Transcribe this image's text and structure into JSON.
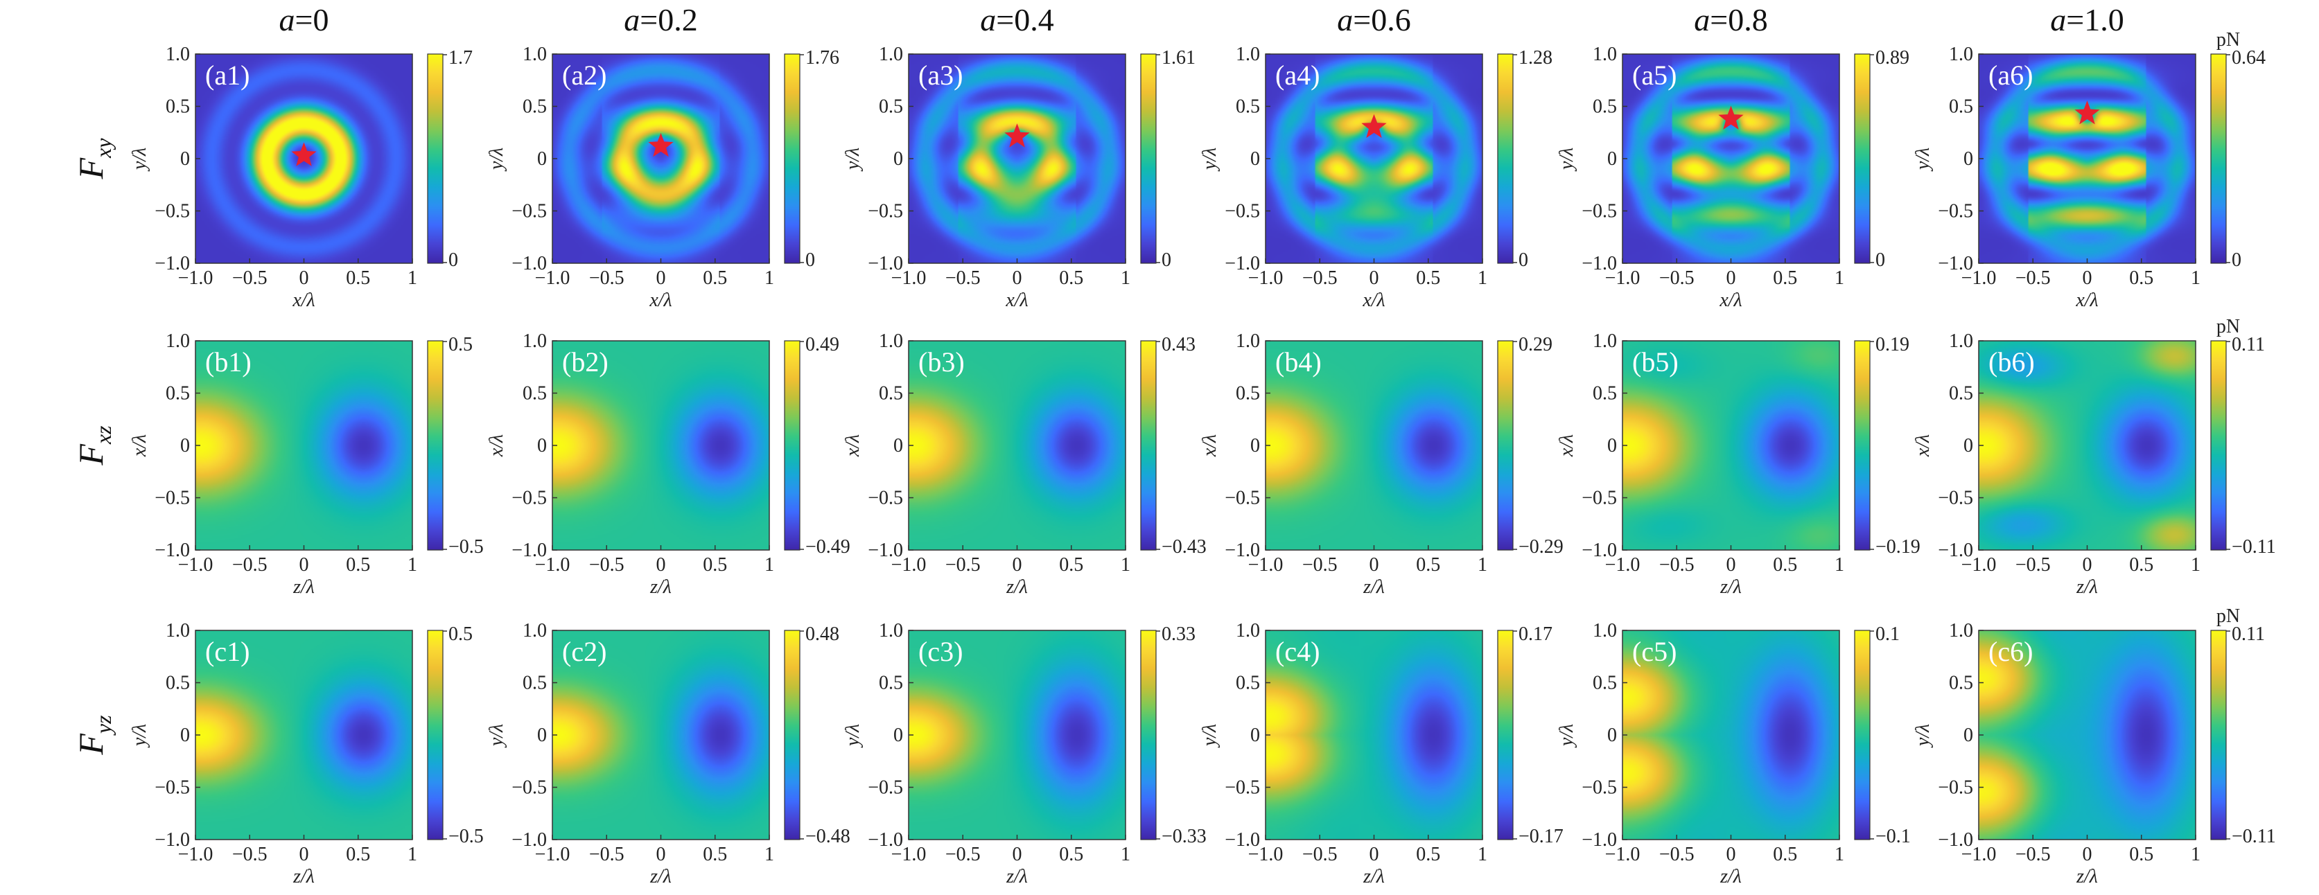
{
  "figure": {
    "colormap": [
      "#3e26a8",
      "#4743d4",
      "#3d6afd",
      "#2c8ff2",
      "#17a8d6",
      "#12bcac",
      "#38c882",
      "#7ec957",
      "#c1c039",
      "#f0c032",
      "#fad932",
      "#f9fb15"
    ],
    "star_color": "#e8202e",
    "unit_label": "pN",
    "column_headers": [
      {
        "a": "a",
        "eq": "=0"
      },
      {
        "a": "a",
        "eq": "=0.2"
      },
      {
        "a": "a",
        "eq": "=0.4"
      },
      {
        "a": "a",
        "eq": "=0.6"
      },
      {
        "a": "a",
        "eq": "=0.8"
      },
      {
        "a": "a",
        "eq": "=1.0"
      }
    ],
    "row_labels": [
      {
        "main": "F",
        "sub": "xy"
      },
      {
        "main": "F",
        "sub": "xz"
      },
      {
        "main": "F",
        "sub": "yz"
      }
    ]
  },
  "chart_data": [
    {
      "id": "a1",
      "type": "heatmap",
      "pattern": "xy",
      "a": 0,
      "panel_label": "(a1)",
      "title": "a=0",
      "xlabel": "x/λ",
      "ylabel": "y/λ",
      "xlim": [
        -1,
        1
      ],
      "ylim": [
        -1,
        1
      ],
      "xticks": [
        "−1.0",
        "−0.5",
        "0",
        "0.5",
        "1"
      ],
      "yticks": [
        "1.0",
        "0.5",
        "0",
        "−0.5",
        "−1.0"
      ],
      "colorbar_max": "1.7",
      "colorbar_min": "0",
      "star": [
        0,
        0.03
      ]
    },
    {
      "id": "a2",
      "type": "heatmap",
      "pattern": "xy",
      "a": 0.2,
      "panel_label": "(a2)",
      "title": "a=0.2",
      "xlabel": "x/λ",
      "ylabel": "y/λ",
      "xlim": [
        -1,
        1
      ],
      "ylim": [
        -1,
        1
      ],
      "xticks": [
        "−1.0",
        "−0.5",
        "0",
        "0.5",
        "1"
      ],
      "yticks": [
        "1.0",
        "0.5",
        "0",
        "−0.5",
        "−1.0"
      ],
      "colorbar_max": "1.76",
      "colorbar_min": "0",
      "star": [
        0,
        0.12
      ]
    },
    {
      "id": "a3",
      "type": "heatmap",
      "pattern": "xy",
      "a": 0.4,
      "panel_label": "(a3)",
      "title": "a=0.4",
      "xlabel": "x/λ",
      "ylabel": "y/λ",
      "xlim": [
        -1,
        1
      ],
      "ylim": [
        -1,
        1
      ],
      "xticks": [
        "−1.0",
        "−0.5",
        "0",
        "0.5",
        "1"
      ],
      "yticks": [
        "1.0",
        "0.5",
        "0",
        "−0.5",
        "−1.0"
      ],
      "colorbar_max": "1.61",
      "colorbar_min": "0",
      "star": [
        0,
        0.21
      ]
    },
    {
      "id": "a4",
      "type": "heatmap",
      "pattern": "xy",
      "a": 0.6,
      "panel_label": "(a4)",
      "title": "a=0.6",
      "xlabel": "x/λ",
      "ylabel": "y/λ",
      "xlim": [
        -1,
        1
      ],
      "ylim": [
        -1,
        1
      ],
      "xticks": [
        "−1.0",
        "−0.5",
        "0",
        "0.5",
        "1"
      ],
      "yticks": [
        "1.0",
        "0.5",
        "0",
        "−0.5",
        "−1.0"
      ],
      "colorbar_max": "1.28",
      "colorbar_min": "0",
      "star": [
        0,
        0.3
      ]
    },
    {
      "id": "a5",
      "type": "heatmap",
      "pattern": "xy",
      "a": 0.8,
      "panel_label": "(a5)",
      "title": "a=0.8",
      "xlabel": "x/λ",
      "ylabel": "y/λ",
      "xlim": [
        -1,
        1
      ],
      "ylim": [
        -1,
        1
      ],
      "xticks": [
        "−1.0",
        "−0.5",
        "0",
        "0.5",
        "1"
      ],
      "yticks": [
        "1.0",
        "0.5",
        "0",
        "−0.5",
        "−1.0"
      ],
      "colorbar_max": "0.89",
      "colorbar_min": "0",
      "star": [
        0,
        0.38
      ]
    },
    {
      "id": "a6",
      "type": "heatmap",
      "pattern": "xy",
      "a": 1.0,
      "panel_label": "(a6)",
      "title": "a=1.0",
      "xlabel": "x/λ",
      "ylabel": "y/λ",
      "xlim": [
        -1,
        1
      ],
      "ylim": [
        -1,
        1
      ],
      "xticks": [
        "−1.0",
        "−0.5",
        "0",
        "0.5",
        "1"
      ],
      "yticks": [
        "1.0",
        "0.5",
        "0",
        "−0.5",
        "−1.0"
      ],
      "colorbar_max": "0.64",
      "colorbar_min": "0",
      "star": [
        0,
        0.43
      ],
      "unit": "pN"
    },
    {
      "id": "b1",
      "type": "heatmap",
      "pattern": "xz",
      "a": 0,
      "panel_label": "(b1)",
      "xlabel": "z/λ",
      "ylabel": "x/λ",
      "xlim": [
        -1,
        1
      ],
      "ylim": [
        -1,
        1
      ],
      "xticks": [
        "−1.0",
        "−0.5",
        "0",
        "0.5",
        "1"
      ],
      "yticks": [
        "1.0",
        "0.5",
        "0",
        "−0.5",
        "−1.0"
      ],
      "colorbar_max": "0.5",
      "colorbar_min": "−0.5"
    },
    {
      "id": "b2",
      "type": "heatmap",
      "pattern": "xz",
      "a": 0.2,
      "panel_label": "(b2)",
      "xlabel": "z/λ",
      "ylabel": "x/λ",
      "xlim": [
        -1,
        1
      ],
      "ylim": [
        -1,
        1
      ],
      "xticks": [
        "−1.0",
        "−0.5",
        "0",
        "0.5",
        "1"
      ],
      "yticks": [
        "1.0",
        "0.5",
        "0",
        "−0.5",
        "−1.0"
      ],
      "colorbar_max": "0.49",
      "colorbar_min": "−0.49"
    },
    {
      "id": "b3",
      "type": "heatmap",
      "pattern": "xz",
      "a": 0.4,
      "panel_label": "(b3)",
      "xlabel": "z/λ",
      "ylabel": "x/λ",
      "xlim": [
        -1,
        1
      ],
      "ylim": [
        -1,
        1
      ],
      "xticks": [
        "−1.0",
        "−0.5",
        "0",
        "0.5",
        "1"
      ],
      "yticks": [
        "1.0",
        "0.5",
        "0",
        "−0.5",
        "−1.0"
      ],
      "colorbar_max": "0.43",
      "colorbar_min": "−0.43"
    },
    {
      "id": "b4",
      "type": "heatmap",
      "pattern": "xz",
      "a": 0.6,
      "panel_label": "(b4)",
      "xlabel": "z/λ",
      "ylabel": "x/λ",
      "xlim": [
        -1,
        1
      ],
      "ylim": [
        -1,
        1
      ],
      "xticks": [
        "−1.0",
        "−0.5",
        "0",
        "0.5",
        "1"
      ],
      "yticks": [
        "1.0",
        "0.5",
        "0",
        "−0.5",
        "−1.0"
      ],
      "colorbar_max": "0.29",
      "colorbar_min": "−0.29"
    },
    {
      "id": "b5",
      "type": "heatmap",
      "pattern": "xz",
      "a": 0.8,
      "panel_label": "(b5)",
      "xlabel": "z/λ",
      "ylabel": "x/λ",
      "xlim": [
        -1,
        1
      ],
      "ylim": [
        -1,
        1
      ],
      "xticks": [
        "−1.0",
        "−0.5",
        "0",
        "0.5",
        "1"
      ],
      "yticks": [
        "1.0",
        "0.5",
        "0",
        "−0.5",
        "−1.0"
      ],
      "colorbar_max": "0.19",
      "colorbar_min": "−0.19"
    },
    {
      "id": "b6",
      "type": "heatmap",
      "pattern": "xz",
      "a": 1.0,
      "panel_label": "(b6)",
      "xlabel": "z/λ",
      "ylabel": "x/λ",
      "xlim": [
        -1,
        1
      ],
      "ylim": [
        -1,
        1
      ],
      "xticks": [
        "−1.0",
        "−0.5",
        "0",
        "0.5",
        "1"
      ],
      "yticks": [
        "1.0",
        "0.5",
        "0",
        "−0.5",
        "−1.0"
      ],
      "colorbar_max": "0.11",
      "colorbar_min": "−0.11",
      "unit": "pN"
    },
    {
      "id": "c1",
      "type": "heatmap",
      "pattern": "yz",
      "a": 0,
      "panel_label": "(c1)",
      "xlabel": "z/λ",
      "ylabel": "y/λ",
      "xlim": [
        -1,
        1
      ],
      "ylim": [
        -1,
        1
      ],
      "xticks": [
        "−1.0",
        "−0.5",
        "0",
        "0.5",
        "1"
      ],
      "yticks": [
        "1.0",
        "0.5",
        "0",
        "−0.5",
        "−1.0"
      ],
      "colorbar_max": "0.5",
      "colorbar_min": "−0.5"
    },
    {
      "id": "c2",
      "type": "heatmap",
      "pattern": "yz",
      "a": 0.2,
      "panel_label": "(c2)",
      "xlabel": "z/λ",
      "ylabel": "y/λ",
      "xlim": [
        -1,
        1
      ],
      "ylim": [
        -1,
        1
      ],
      "xticks": [
        "−1.0",
        "−0.5",
        "0",
        "0.5",
        "1"
      ],
      "yticks": [
        "1.0",
        "0.5",
        "0",
        "−0.5",
        "−1.0"
      ],
      "colorbar_max": "0.48",
      "colorbar_min": "−0.48"
    },
    {
      "id": "c3",
      "type": "heatmap",
      "pattern": "yz",
      "a": 0.4,
      "panel_label": "(c3)",
      "xlabel": "z/λ",
      "ylabel": "y/λ",
      "xlim": [
        -1,
        1
      ],
      "ylim": [
        -1,
        1
      ],
      "xticks": [
        "−1.0",
        "−0.5",
        "0",
        "0.5",
        "1"
      ],
      "yticks": [
        "1.0",
        "0.5",
        "0",
        "−0.5",
        "−1.0"
      ],
      "colorbar_max": "0.33",
      "colorbar_min": "−0.33"
    },
    {
      "id": "c4",
      "type": "heatmap",
      "pattern": "yz",
      "a": 0.6,
      "panel_label": "(c4)",
      "xlabel": "z/λ",
      "ylabel": "y/λ",
      "xlim": [
        -1,
        1
      ],
      "ylim": [
        -1,
        1
      ],
      "xticks": [
        "−1.0",
        "−0.5",
        "0",
        "0.5",
        "1"
      ],
      "yticks": [
        "1.0",
        "0.5",
        "0",
        "−0.5",
        "−1.0"
      ],
      "colorbar_max": "0.17",
      "colorbar_min": "−0.17"
    },
    {
      "id": "c5",
      "type": "heatmap",
      "pattern": "yz",
      "a": 0.8,
      "panel_label": "(c5)",
      "xlabel": "z/λ",
      "ylabel": "y/λ",
      "xlim": [
        -1,
        1
      ],
      "ylim": [
        -1,
        1
      ],
      "xticks": [
        "−1.0",
        "−0.5",
        "0",
        "0.5",
        "1"
      ],
      "yticks": [
        "1.0",
        "0.5",
        "0",
        "−0.5",
        "−1.0"
      ],
      "colorbar_max": "0.1",
      "colorbar_min": "−0.1"
    },
    {
      "id": "c6",
      "type": "heatmap",
      "pattern": "yz",
      "a": 1.0,
      "panel_label": "(c6)",
      "xlabel": "z/λ",
      "ylabel": "y/λ",
      "xlim": [
        -1,
        1
      ],
      "ylim": [
        -1,
        1
      ],
      "xticks": [
        "−1.0",
        "−0.5",
        "0",
        "0.5",
        "1"
      ],
      "yticks": [
        "1.0",
        "0.5",
        "0",
        "−0.5",
        "−1.0"
      ],
      "colorbar_max": "0.11",
      "colorbar_min": "−0.11",
      "unit": "pN"
    }
  ]
}
